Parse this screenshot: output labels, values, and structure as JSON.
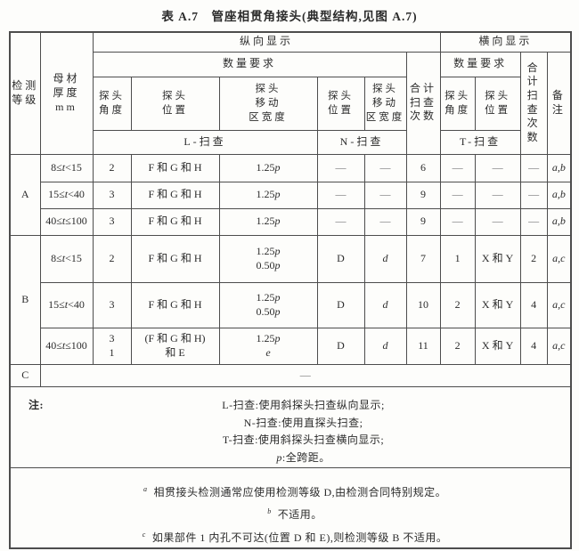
{
  "title": "表 A.7　管座相贯角接头(典型结构,见图 A.7)",
  "colors": {
    "border": "#4d4d4d",
    "text": "#2b2b2b",
    "background": "#fdfdfb"
  },
  "header": {
    "level": "检测\n等级",
    "thickness": "母材\n厚度\nmm",
    "longitudinal": "纵向显示",
    "transverse": "横向显示",
    "quantity": "数量要求",
    "probe_angle": "探头\n角度",
    "probe_pos": "探头\n位置",
    "probe_width": "探头\n移动\n区宽度",
    "total": "合计\n扫查\n次数",
    "remark": "备\n注",
    "l_scan": "L-扫查",
    "n_scan": "N-扫查",
    "t_scan": "T-扫查"
  },
  "rows": [
    {
      "level": "A",
      "thickness": "8≤*t*<15",
      "l_angle": "2",
      "l_pos": "F 和 G 和 H",
      "l_width": "1.25*p*",
      "n_pos": "—",
      "n_width": "—",
      "total_l": "6",
      "t_angle": "—",
      "t_pos": "—",
      "total_t": "—",
      "remark": "a,b"
    },
    {
      "level": "",
      "thickness": "15≤*t*<40",
      "l_angle": "3",
      "l_pos": "F 和 G 和 H",
      "l_width": "1.25*p*",
      "n_pos": "—",
      "n_width": "—",
      "total_l": "9",
      "t_angle": "—",
      "t_pos": "—",
      "total_t": "—",
      "remark": "a,b"
    },
    {
      "level": "",
      "thickness": "40≤*t*≤100",
      "l_angle": "3",
      "l_pos": "F 和 G 和 H",
      "l_width": "1.25*p*",
      "n_pos": "—",
      "n_width": "—",
      "total_l": "9",
      "t_angle": "—",
      "t_pos": "—",
      "total_t": "—",
      "remark": "a,b"
    },
    {
      "level": "B",
      "thickness": "8≤*t*<15",
      "l_angle": "2",
      "l_pos": "F 和 G 和 H",
      "l_width": "1.25*p*\n0.50*p*",
      "n_pos": "D",
      "n_width": "*d*",
      "total_l": "7",
      "t_angle": "1",
      "t_pos": "X 和 Y",
      "total_t": "2",
      "remark": "a,c"
    },
    {
      "level": "",
      "thickness": "15≤*t*<40",
      "l_angle": "3",
      "l_pos": "F 和 G 和 H",
      "l_width": "1.25*p*\n0.50*p*",
      "n_pos": "D",
      "n_width": "*d*",
      "total_l": "10",
      "t_angle": "2",
      "t_pos": "X 和 Y",
      "total_t": "4",
      "remark": "a,c"
    },
    {
      "level": "",
      "thickness": "40≤*t*≤100",
      "l_angle": "3\n1",
      "l_pos": "(F 和 G 和 H)\n和 E",
      "l_width": "1.25*p*\n*e*",
      "n_pos": "D",
      "n_width": "*d*",
      "total_l": "11",
      "t_angle": "2",
      "t_pos": "X 和 Y",
      "total_t": "4",
      "remark": "a,c"
    }
  ],
  "c_row": {
    "level": "C",
    "value": "—"
  },
  "notes": {
    "label": "注:",
    "lines": [
      "L-扫查:使用斜探头扫查纵向显示;",
      "N-扫查:使用直探头扫查;",
      "T-扫查:使用斜探头扫查横向显示;",
      "*p*:全跨距。"
    ]
  },
  "footnotes": [
    {
      "marker": "a",
      "text": "相贯接头检测通常应使用检测等级 D,由检测合同特别规定。"
    },
    {
      "marker": "b",
      "text": "不适用。"
    },
    {
      "marker": "c",
      "text": "如果部件 1 内孔不可达(位置 D 和 E),则检测等级 B 不适用。"
    }
  ]
}
